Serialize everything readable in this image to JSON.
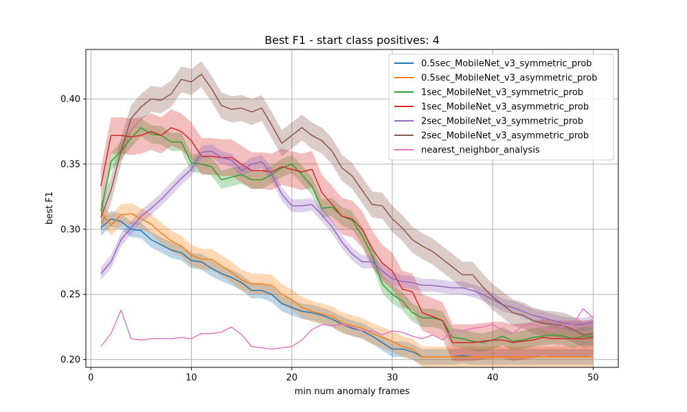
{
  "chart_data": {
    "type": "line",
    "title": "Best F1 - start class positives: 4",
    "xlabel": "min num anomaly frames",
    "ylabel": "best F1",
    "xlim": [
      -0.5,
      52.5
    ],
    "ylim": [
      0.194,
      0.438
    ],
    "xticks": [
      0,
      10,
      20,
      30,
      40,
      50
    ],
    "yticks": [
      0.2,
      0.25,
      0.3,
      0.35,
      0.4
    ],
    "xtick_labels": [
      "0",
      "10",
      "20",
      "30",
      "40",
      "50"
    ],
    "ytick_labels": [
      "0.20",
      "0.25",
      "0.30",
      "0.35",
      "0.40"
    ],
    "grid": true,
    "legend_position": "top-right",
    "x": [
      1,
      2,
      3,
      4,
      5,
      6,
      7,
      8,
      9,
      10,
      11,
      12,
      13,
      14,
      15,
      16,
      17,
      18,
      19,
      20,
      21,
      22,
      23,
      24,
      25,
      26,
      27,
      28,
      29,
      30,
      31,
      32,
      33,
      34,
      35,
      36,
      37,
      38,
      39,
      40,
      41,
      42,
      43,
      44,
      45,
      46,
      47,
      48,
      49,
      50
    ],
    "series": [
      {
        "name": "0.5sec_MobileNet_v3_symmetric_prob",
        "color": "#1f77b4",
        "band": 0.006,
        "values": [
          0.301,
          0.308,
          0.306,
          0.3,
          0.299,
          0.292,
          0.288,
          0.284,
          0.282,
          0.276,
          0.275,
          0.27,
          0.266,
          0.263,
          0.259,
          0.253,
          0.253,
          0.25,
          0.243,
          0.24,
          0.237,
          0.236,
          0.234,
          0.231,
          0.227,
          0.224,
          0.222,
          0.218,
          0.213,
          0.208,
          0.208,
          0.206,
          0.202,
          0.202,
          0.202,
          0.202,
          0.203,
          0.202,
          0.202,
          0.202,
          0.202,
          0.202,
          0.202,
          0.202,
          0.202,
          0.202,
          0.202,
          0.202,
          0.202,
          0.202
        ]
      },
      {
        "name": "0.5sec_MobileNet_v3_asymmetric_prob",
        "color": "#ff7f0e",
        "band": 0.008,
        "values": [
          0.313,
          0.303,
          0.311,
          0.312,
          0.308,
          0.304,
          0.297,
          0.291,
          0.287,
          0.28,
          0.277,
          0.277,
          0.272,
          0.267,
          0.261,
          0.258,
          0.258,
          0.257,
          0.25,
          0.246,
          0.24,
          0.237,
          0.235,
          0.233,
          0.228,
          0.226,
          0.224,
          0.22,
          0.217,
          0.214,
          0.21,
          0.208,
          0.202,
          0.202,
          0.202,
          0.202,
          0.202,
          0.202,
          0.202,
          0.202,
          0.202,
          0.202,
          0.202,
          0.202,
          0.202,
          0.202,
          0.202,
          0.202,
          0.202,
          0.202
        ]
      },
      {
        "name": "1sec_MobileNet_v3_symmetric_prob",
        "color": "#2ca02c",
        "band": 0.007,
        "values": [
          0.314,
          0.352,
          0.36,
          0.37,
          0.378,
          0.373,
          0.372,
          0.367,
          0.367,
          0.351,
          0.35,
          0.348,
          0.338,
          0.34,
          0.342,
          0.338,
          0.338,
          0.342,
          0.347,
          0.35,
          0.342,
          0.333,
          0.316,
          0.317,
          0.31,
          0.307,
          0.295,
          0.28,
          0.258,
          0.25,
          0.245,
          0.236,
          0.232,
          0.232,
          0.23,
          0.217,
          0.216,
          0.214,
          0.213,
          0.215,
          0.218,
          0.214,
          0.215,
          0.217,
          0.218,
          0.219,
          0.218,
          0.216,
          0.218,
          0.218
        ]
      },
      {
        "name": "1sec_MobileNet_v3_asymmetric_prob",
        "color": "#d62728",
        "band": 0.014,
        "values": [
          0.333,
          0.372,
          0.372,
          0.371,
          0.372,
          0.375,
          0.372,
          0.378,
          0.375,
          0.368,
          0.356,
          0.356,
          0.355,
          0.355,
          0.35,
          0.345,
          0.345,
          0.344,
          0.348,
          0.346,
          0.344,
          0.346,
          0.328,
          0.319,
          0.31,
          0.308,
          0.3,
          0.285,
          0.274,
          0.268,
          0.254,
          0.252,
          0.236,
          0.233,
          0.23,
          0.213,
          0.213,
          0.213,
          0.214,
          0.215,
          0.215,
          0.213,
          0.214,
          0.215,
          0.217,
          0.216,
          0.216,
          0.216,
          0.216,
          0.217
        ]
      },
      {
        "name": "2sec_MobileNet_v3_symmetric_prob",
        "color": "#9467bd",
        "band": 0.005,
        "values": [
          0.266,
          0.275,
          0.292,
          0.301,
          0.31,
          0.316,
          0.323,
          0.331,
          0.339,
          0.346,
          0.359,
          0.36,
          0.355,
          0.353,
          0.345,
          0.35,
          0.352,
          0.342,
          0.327,
          0.318,
          0.318,
          0.319,
          0.311,
          0.302,
          0.29,
          0.281,
          0.275,
          0.275,
          0.268,
          0.262,
          0.26,
          0.259,
          0.257,
          0.257,
          0.256,
          0.255,
          0.255,
          0.253,
          0.25,
          0.246,
          0.242,
          0.24,
          0.237,
          0.234,
          0.232,
          0.23,
          0.228,
          0.227,
          0.227,
          0.229
        ]
      },
      {
        "name": "2sec_MobileNet_v3_asymmetric_prob",
        "color": "#8c564b",
        "band": 0.01,
        "values": [
          0.309,
          0.33,
          0.36,
          0.385,
          0.394,
          0.4,
          0.399,
          0.404,
          0.415,
          0.413,
          0.419,
          0.408,
          0.395,
          0.392,
          0.393,
          0.39,
          0.393,
          0.38,
          0.366,
          0.372,
          0.378,
          0.372,
          0.368,
          0.36,
          0.347,
          0.341,
          0.33,
          0.319,
          0.318,
          0.308,
          0.301,
          0.292,
          0.287,
          0.283,
          0.277,
          0.271,
          0.265,
          0.265,
          0.256,
          0.248,
          0.242,
          0.236,
          0.234,
          0.23,
          0.228,
          0.227,
          0.226,
          0.223,
          0.219,
          0.22
        ]
      },
      {
        "name": "nearest_neighbor_analysis",
        "color": "#e377c2",
        "band": 0,
        "values": [
          0.21,
          0.22,
          0.238,
          0.216,
          0.215,
          0.216,
          0.216,
          0.216,
          0.217,
          0.216,
          0.22,
          0.22,
          0.221,
          0.225,
          0.219,
          0.21,
          0.209,
          0.208,
          0.209,
          0.21,
          0.215,
          0.223,
          0.227,
          0.226,
          0.227,
          0.225,
          0.222,
          0.222,
          0.219,
          0.222,
          0.221,
          0.218,
          0.216,
          0.219,
          0.215,
          0.222,
          0.222,
          0.224,
          0.225,
          0.227,
          0.222,
          0.22,
          0.226,
          0.227,
          0.224,
          0.222,
          0.226,
          0.227,
          0.239,
          0.232
        ]
      }
    ]
  }
}
